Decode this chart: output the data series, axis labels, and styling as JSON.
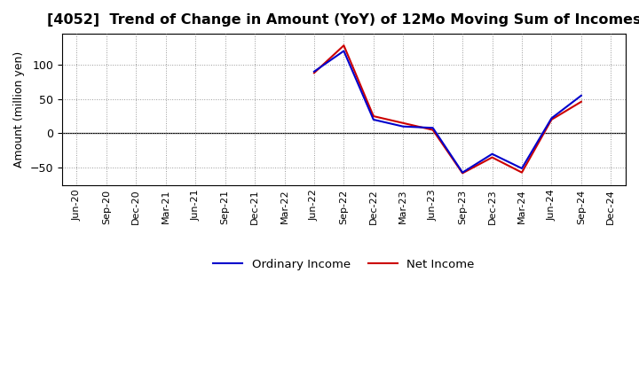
{
  "title": "[4052]  Trend of Change in Amount (YoY) of 12Mo Moving Sum of Incomes",
  "ylabel": "Amount (million yen)",
  "x_labels": [
    "Jun-20",
    "Sep-20",
    "Dec-20",
    "Mar-21",
    "Jun-21",
    "Sep-21",
    "Dec-21",
    "Mar-22",
    "Jun-22",
    "Sep-22",
    "Dec-22",
    "Mar-23",
    "Jun-23",
    "Sep-23",
    "Dec-23",
    "Mar-24",
    "Jun-24",
    "Sep-24",
    "Dec-24"
  ],
  "ordinary_income": [
    null,
    null,
    null,
    null,
    null,
    null,
    null,
    null,
    90,
    120,
    20,
    10,
    8,
    -57,
    -30,
    -51,
    22,
    55,
    null
  ],
  "net_income": [
    null,
    null,
    null,
    null,
    null,
    null,
    null,
    null,
    88,
    128,
    25,
    15,
    5,
    -58,
    -35,
    -57,
    20,
    46,
    null
  ],
  "ordinary_color": "#0000cc",
  "net_color": "#cc0000",
  "ylim": [
    -75,
    145
  ],
  "yticks": [
    -50,
    0,
    50,
    100
  ],
  "grid_color": "#999999",
  "bg_color": "#ffffff",
  "linewidth": 1.5
}
